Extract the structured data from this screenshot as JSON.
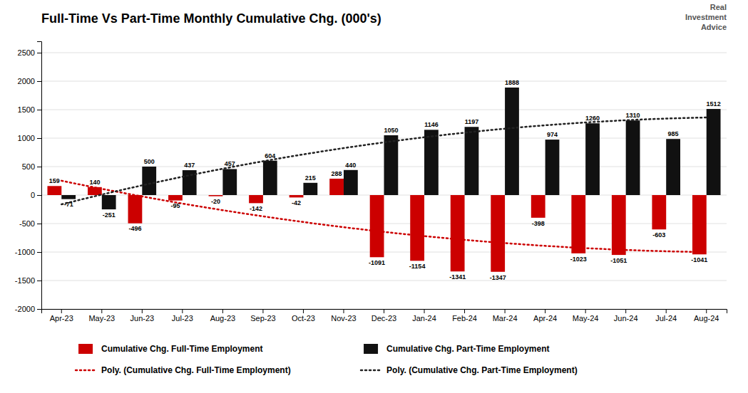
{
  "chart_data": {
    "type": "bar",
    "title": "Full-Time Vs Part-Time Monthly Cumulative Chg. (000's)",
    "categories": [
      "Apr-23",
      "May-23",
      "Jun-23",
      "Jul-23",
      "Aug-23",
      "Sep-23",
      "Oct-23",
      "Nov-23",
      "Dec-23",
      "Jan-24",
      "Feb-24",
      "Mar-24",
      "Apr-24",
      "May-24",
      "Jun-24",
      "Jul-24",
      "Aug-24"
    ],
    "series": [
      {
        "name": "Cumulative Chg. Full-Time Employment",
        "type": "bar",
        "color": "#cc0000",
        "values": [
          159,
          140,
          -496,
          -95,
          -20,
          -142,
          -42,
          288,
          -1091,
          -1154,
          -1341,
          -1347,
          -398,
          -1023,
          -1051,
          -603,
          -1041
        ]
      },
      {
        "name": "Cumulative Chg. Part-Time Employment",
        "type": "bar",
        "color": "#111111",
        "values": [
          -71,
          -251,
          500,
          437,
          457,
          604,
          215,
          440,
          1050,
          1146,
          1197,
          1888,
          974,
          1260,
          1310,
          985,
          1512
        ]
      },
      {
        "name": "Poly. (Cumulative Chg. Full-Time Employment)",
        "type": "line",
        "color": "#cc0000",
        "line_style": "dotted",
        "values": [
          251.5,
          109.5,
          -23.9,
          -148.9,
          -265.4,
          -373.4,
          -472.9,
          -563.9,
          -646.4,
          -720.4,
          -786.0,
          -843.0,
          -891.6,
          -931.7,
          -963.3,
          -986.4,
          -1001.0
        ]
      },
      {
        "name": "Poly. (Cumulative Chg. Part-Time Employment)",
        "type": "line",
        "color": "#222222",
        "line_style": "dotted",
        "values": [
          -162.2,
          9.2,
          170.4,
          321.6,
          462.5,
          593.3,
          714.0,
          824.5,
          924.9,
          1015.1,
          1095.2,
          1165.1,
          1224.9,
          1274.5,
          1314.0,
          1343.3,
          1362.5
        ]
      }
    ],
    "ylim": [
      -2000,
      2700
    ],
    "yticks": [
      -2000,
      -1500,
      -1000,
      -500,
      0,
      500,
      1000,
      1500,
      2000,
      2500
    ],
    "grid": true,
    "legend": "bottom",
    "data_labels": true,
    "annotations": [
      "Real\nInvestment\nAdvice"
    ]
  }
}
